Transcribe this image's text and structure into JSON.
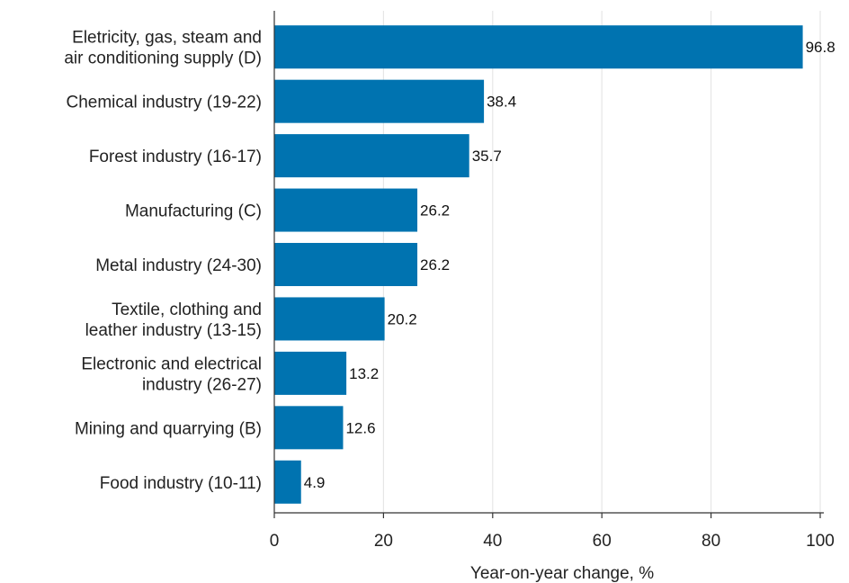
{
  "chart_data": {
    "type": "bar",
    "orientation": "horizontal",
    "categories": [
      [
        "Eletricity, gas, steam and",
        "air conditioning supply (D)"
      ],
      [
        "Chemical industry (19-22)"
      ],
      [
        "Forest industry (16-17)"
      ],
      [
        "Manufacturing (C)"
      ],
      [
        "Metal industry (24-30)"
      ],
      [
        "Textile, clothing and",
        "leather industry (13-15)"
      ],
      [
        "Electronic and electrical",
        "industry (26-27)"
      ],
      [
        "Mining and quarrying (B)"
      ],
      [
        "Food industry (10-11)"
      ]
    ],
    "values": [
      96.8,
      38.4,
      35.7,
      26.2,
      26.2,
      20.2,
      13.2,
      12.6,
      4.9
    ],
    "value_labels": [
      "96.8",
      "38.4",
      "35.7",
      "26.2",
      "26.2",
      "20.2",
      "13.2",
      "12.6",
      "4.9"
    ],
    "xlabel": "Year-on-year change, %",
    "ylabel": "",
    "title": "",
    "xlim": [
      0,
      100
    ],
    "xticks": [
      0,
      20,
      40,
      60,
      80,
      100
    ],
    "grid": "vertical",
    "legend": "none",
    "colors": {
      "bar": "#0073b0",
      "grid": "#e6e6e6",
      "axis": "#333333",
      "text": "#222222"
    }
  }
}
